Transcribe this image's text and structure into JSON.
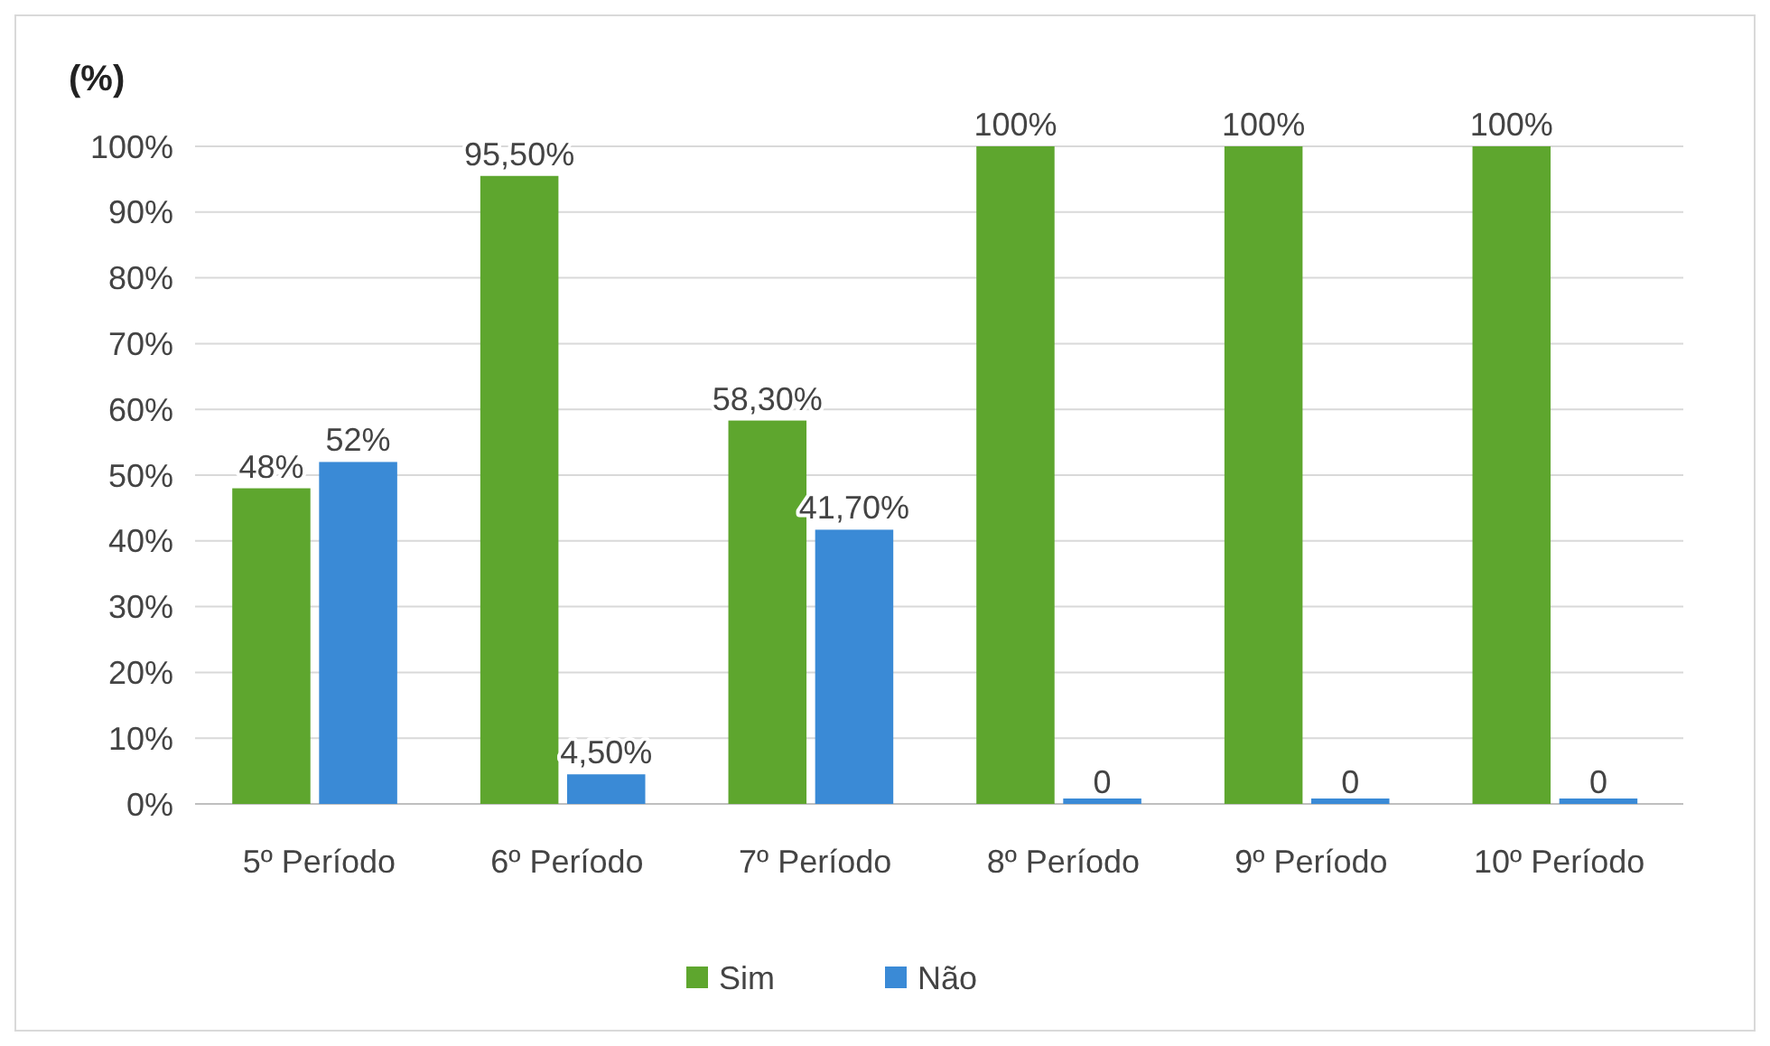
{
  "chart_data": {
    "type": "bar",
    "ylabel": "(%)",
    "categories": [
      "5º Período",
      "6º Período",
      "7º Período",
      "8º Período",
      "9º Período",
      "10º Período"
    ],
    "series": [
      {
        "name": "Sim",
        "color": "#5ea62e",
        "values": [
          48,
          95.5,
          58.3,
          100,
          100,
          100
        ],
        "value_labels": [
          "48%",
          "95,50%",
          "58,30%",
          "100%",
          "100%",
          "100%"
        ]
      },
      {
        "name": "Não",
        "color": "#3a8ad6",
        "values": [
          52,
          4.5,
          41.7,
          0,
          0,
          0
        ],
        "value_labels": [
          "52%",
          "4,50%",
          "41,70%",
          "0",
          "0",
          "0"
        ]
      }
    ],
    "ylim": [
      0,
      100
    ],
    "yticks": [
      {
        "value": 0,
        "label": "0%"
      },
      {
        "value": 10,
        "label": "10%"
      },
      {
        "value": 20,
        "label": "20%"
      },
      {
        "value": 30,
        "label": "30%"
      },
      {
        "value": 40,
        "label": "40%"
      },
      {
        "value": 50,
        "label": "50%"
      },
      {
        "value": 60,
        "label": "60%"
      },
      {
        "value": 70,
        "label": "70%"
      },
      {
        "value": 80,
        "label": "80%"
      },
      {
        "value": 90,
        "label": "90%"
      },
      {
        "value": 100,
        "label": "100%"
      }
    ],
    "grid": "y",
    "legend": "bottom"
  }
}
